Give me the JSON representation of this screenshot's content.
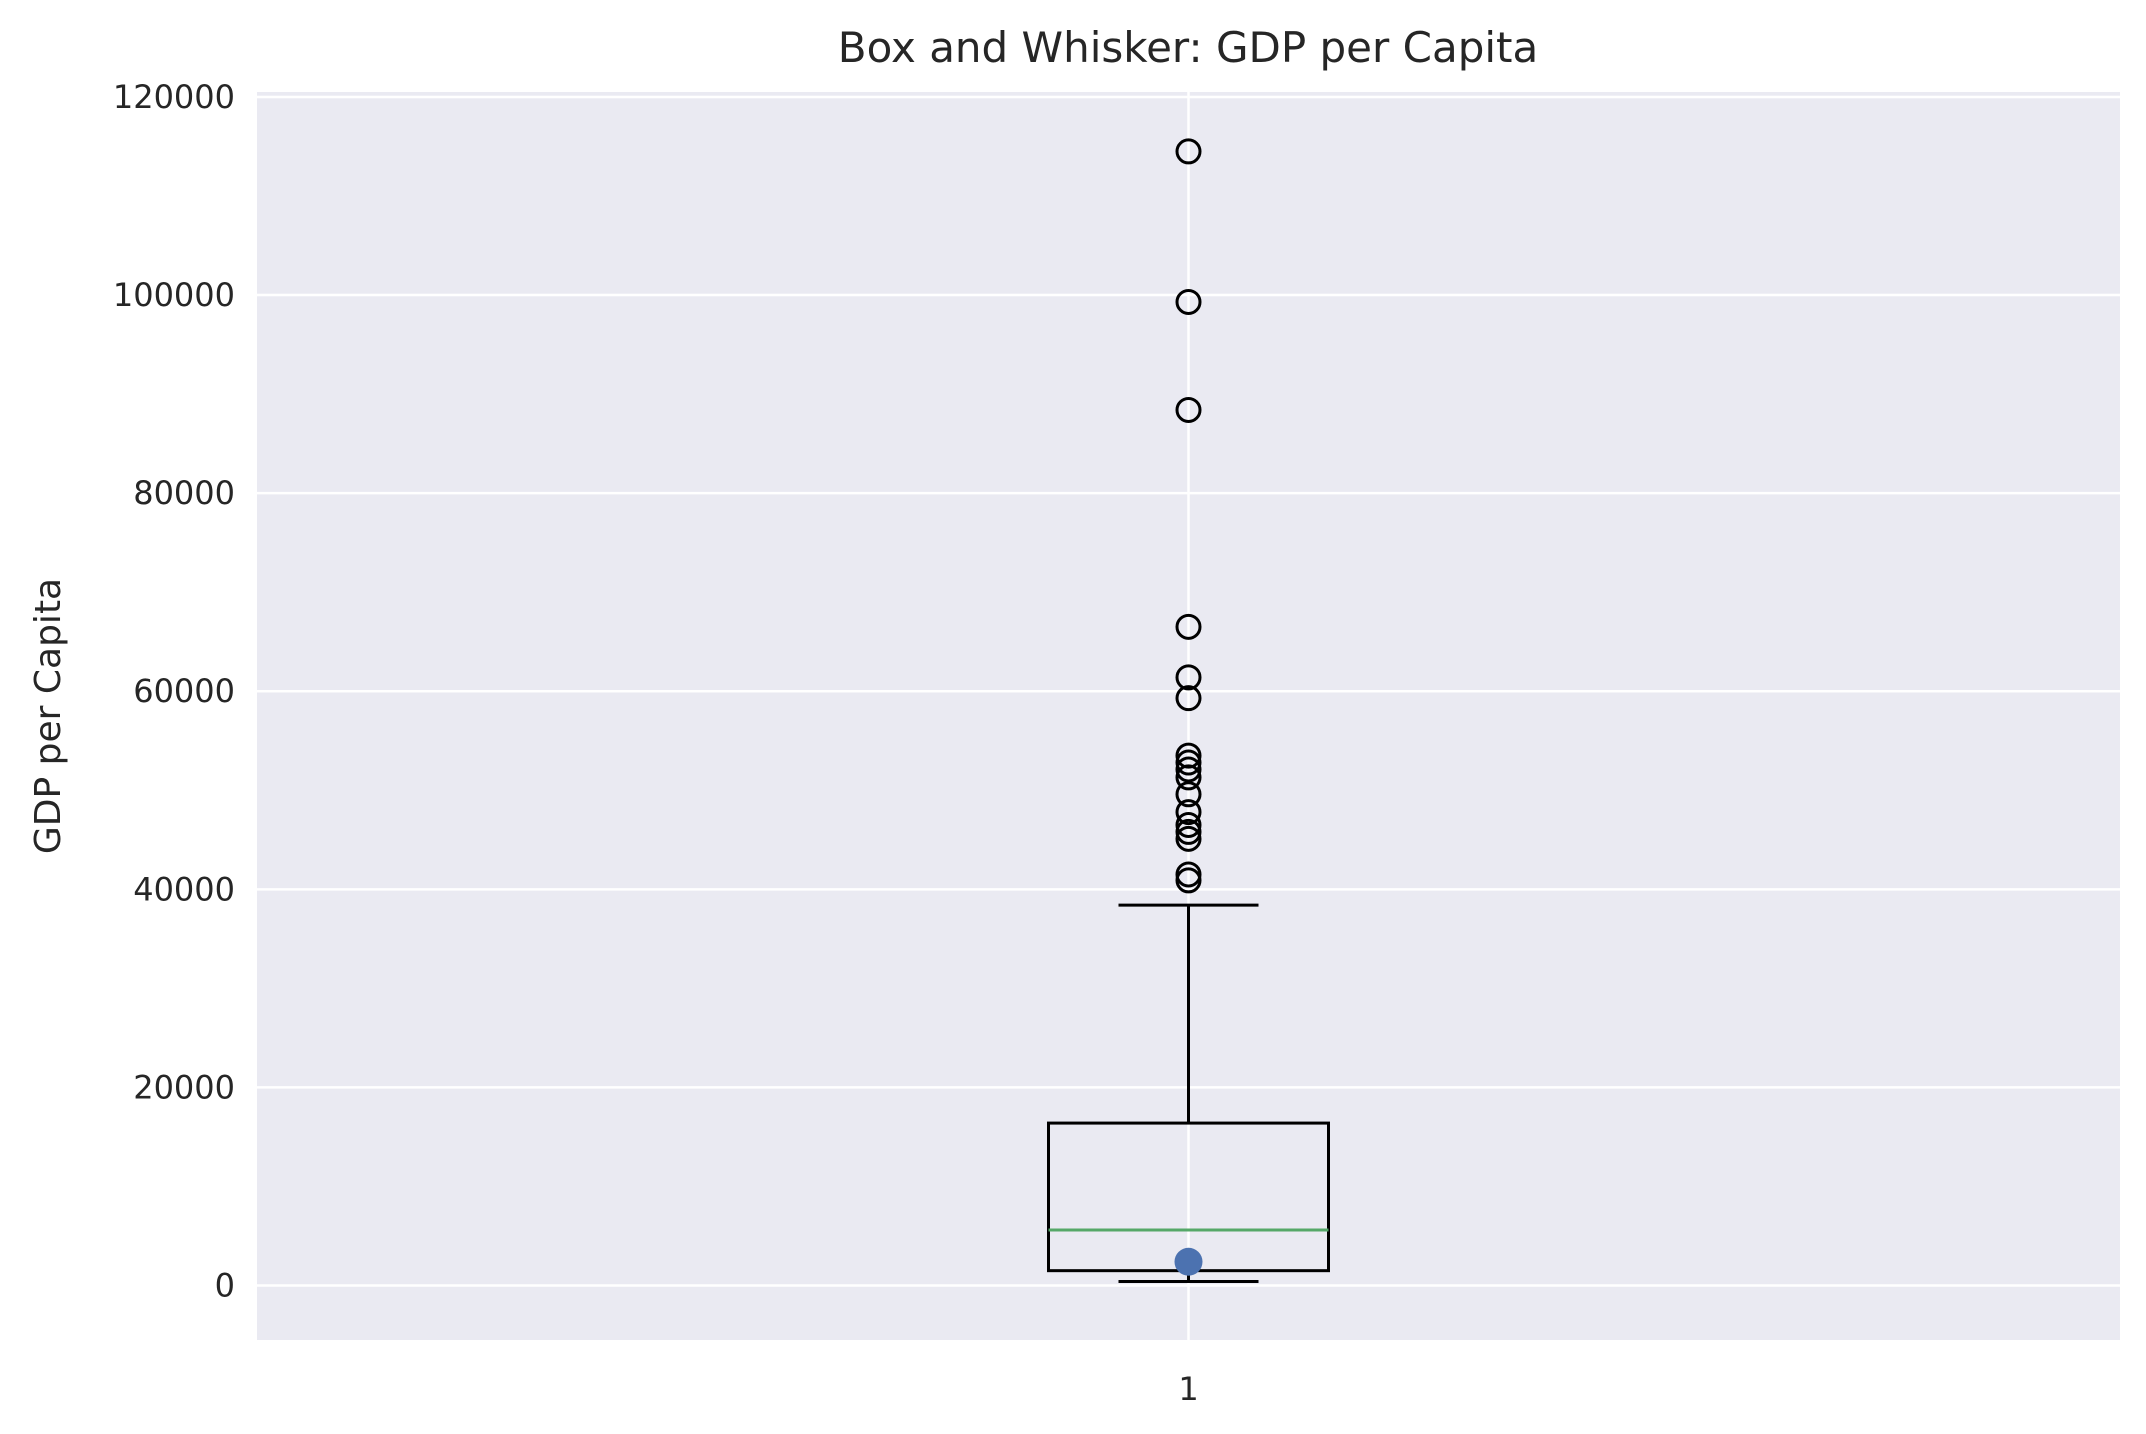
{
  "chart_data": {
    "type": "box",
    "title": "Box and Whisker: GDP per Capita",
    "xlabel": "",
    "ylabel": "GDP per Capita",
    "categories": [
      "1"
    ],
    "ylim": [
      -5500,
      120500
    ],
    "yticks": [
      0,
      20000,
      40000,
      60000,
      80000,
      100000,
      120000
    ],
    "ytick_labels": [
      "0",
      "20000",
      "40000",
      "60000",
      "80000",
      "100000",
      "120000"
    ],
    "grid": true,
    "box": {
      "category": "1",
      "whisker_low": 400,
      "q1": 1500,
      "median": 5600,
      "q3": 16400,
      "whisker_high": 38400
    },
    "outliers": [
      114500,
      99300,
      88400,
      66500,
      61400,
      59300,
      53500,
      52800,
      52100,
      51300,
      49600,
      47800,
      46500,
      45800,
      45100,
      41500,
      40900
    ],
    "extra_point": {
      "y": 2400
    },
    "colors": {
      "background": "#eaeaf2",
      "grid": "#ffffff",
      "box": "#000000",
      "median": "#55a868",
      "point": "#4c72b0",
      "text": "#262626"
    }
  }
}
